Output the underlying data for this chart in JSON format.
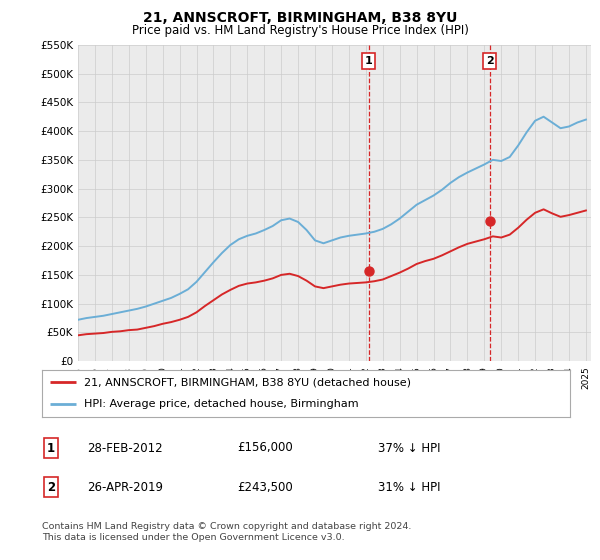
{
  "title": "21, ANNSCROFT, BIRMINGHAM, B38 8YU",
  "subtitle": "Price paid vs. HM Land Registry's House Price Index (HPI)",
  "ylim": [
    0,
    550000
  ],
  "yticks": [
    0,
    50000,
    100000,
    150000,
    200000,
    250000,
    300000,
    350000,
    400000,
    450000,
    500000,
    550000
  ],
  "ytick_labels": [
    "£0",
    "£50K",
    "£100K",
    "£150K",
    "£200K",
    "£250K",
    "£300K",
    "£350K",
    "£400K",
    "£450K",
    "£500K",
    "£550K"
  ],
  "hpi_color": "#6baed6",
  "price_color": "#d62728",
  "vline_color": "#d62728",
  "grid_color": "#cccccc",
  "bg_color": "#ffffff",
  "plot_bg_color": "#ebebeb",
  "transaction1_price": 156000,
  "transaction1_pct": "37% ↓ HPI",
  "transaction1_date": "28-FEB-2012",
  "transaction1_label": "1",
  "transaction1_x": 2012.16,
  "transaction2_price": 243500,
  "transaction2_pct": "31% ↓ HPI",
  "transaction2_date": "26-APR-2019",
  "transaction2_label": "2",
  "transaction2_x": 2019.32,
  "legend_line1": "21, ANNSCROFT, BIRMINGHAM, B38 8YU (detached house)",
  "legend_line2": "HPI: Average price, detached house, Birmingham",
  "footnote1": "Contains HM Land Registry data © Crown copyright and database right 2024.",
  "footnote2": "This data is licensed under the Open Government Licence v3.0.",
  "xlim_left": 1995.0,
  "xlim_right": 2025.3,
  "hpi_years": [
    1995.0,
    1995.5,
    1996.0,
    1996.5,
    1997.0,
    1997.5,
    1998.0,
    1998.5,
    1999.0,
    1999.5,
    2000.0,
    2000.5,
    2001.0,
    2001.5,
    2002.0,
    2002.5,
    2003.0,
    2003.5,
    2004.0,
    2004.5,
    2005.0,
    2005.5,
    2006.0,
    2006.5,
    2007.0,
    2007.5,
    2008.0,
    2008.5,
    2009.0,
    2009.5,
    2010.0,
    2010.5,
    2011.0,
    2011.5,
    2012.0,
    2012.5,
    2013.0,
    2013.5,
    2014.0,
    2014.5,
    2015.0,
    2015.5,
    2016.0,
    2016.5,
    2017.0,
    2017.5,
    2018.0,
    2018.5,
    2019.0,
    2019.5,
    2020.0,
    2020.5,
    2021.0,
    2021.5,
    2022.0,
    2022.5,
    2023.0,
    2023.5,
    2024.0,
    2024.5,
    2025.0
  ],
  "hpi_values": [
    72000,
    75000,
    77000,
    79000,
    82000,
    85000,
    88000,
    91000,
    95000,
    100000,
    105000,
    110000,
    117000,
    125000,
    138000,
    155000,
    172000,
    188000,
    202000,
    212000,
    218000,
    222000,
    228000,
    235000,
    245000,
    248000,
    242000,
    228000,
    210000,
    205000,
    210000,
    215000,
    218000,
    220000,
    222000,
    225000,
    230000,
    238000,
    248000,
    260000,
    272000,
    280000,
    288000,
    298000,
    310000,
    320000,
    328000,
    335000,
    342000,
    350000,
    348000,
    355000,
    375000,
    398000,
    418000,
    425000,
    415000,
    405000,
    408000,
    415000,
    420000
  ],
  "price_years": [
    1995.0,
    1995.5,
    1996.0,
    1996.5,
    1997.0,
    1997.5,
    1998.0,
    1998.5,
    1999.0,
    1999.5,
    2000.0,
    2000.5,
    2001.0,
    2001.5,
    2002.0,
    2002.5,
    2003.0,
    2003.5,
    2004.0,
    2004.5,
    2005.0,
    2005.5,
    2006.0,
    2006.5,
    2007.0,
    2007.5,
    2008.0,
    2008.5,
    2009.0,
    2009.5,
    2010.0,
    2010.5,
    2011.0,
    2011.5,
    2012.0,
    2012.5,
    2013.0,
    2013.5,
    2014.0,
    2014.5,
    2015.0,
    2015.5,
    2016.0,
    2016.5,
    2017.0,
    2017.5,
    2018.0,
    2018.5,
    2019.0,
    2019.5,
    2020.0,
    2020.5,
    2021.0,
    2021.5,
    2022.0,
    2022.5,
    2023.0,
    2023.5,
    2024.0,
    2024.5,
    2025.0
  ],
  "price_values": [
    45000,
    47000,
    48000,
    49000,
    51000,
    52000,
    54000,
    55000,
    58000,
    61000,
    65000,
    68000,
    72000,
    77000,
    85000,
    96000,
    106000,
    116000,
    124000,
    131000,
    135000,
    137000,
    140000,
    144000,
    150000,
    152000,
    148000,
    140000,
    130000,
    127000,
    130000,
    133000,
    135000,
    136000,
    137000,
    139000,
    142000,
    148000,
    154000,
    161000,
    169000,
    174000,
    178000,
    184000,
    191000,
    198000,
    204000,
    208000,
    212000,
    217000,
    215000,
    220000,
    232000,
    246000,
    258000,
    264000,
    257000,
    251000,
    254000,
    258000,
    262000
  ]
}
